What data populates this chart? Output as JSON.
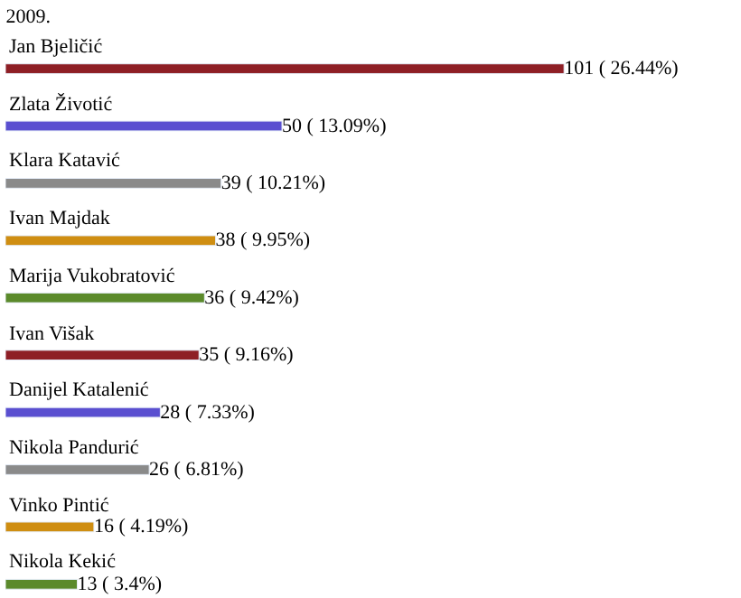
{
  "chart_data": {
    "type": "bar",
    "orientation": "horizontal",
    "title": "2009.",
    "categories": [
      "Jan Bjeličić",
      "Zlata Životić",
      "Klara Katavić",
      "Ivan Majdak",
      "Marija Vukobratović",
      "Ivan Višak",
      "Danijel Katalenić",
      "Nikola Pandurić",
      "Vinko Pintić",
      "Nikola Kekić"
    ],
    "values": [
      101,
      50,
      39,
      38,
      36,
      35,
      28,
      26,
      16,
      13
    ],
    "value_labels": [
      "101 ( 26.44%)",
      "50 ( 13.09%)",
      "39 ( 10.21%)",
      "38 ( 9.95%)",
      "36 ( 9.42%)",
      "35 ( 9.16%)",
      "28 ( 7.33%)",
      "26 ( 6.81%)",
      "16 ( 4.19%)",
      "13 ( 3.4%)"
    ],
    "colors": [
      "#8e1f25",
      "#5a4fd0",
      "#8a8a8a",
      "#cf8e12",
      "#5b8a2b",
      "#8e1f25",
      "#5a4fd0",
      "#8a8a8a",
      "#cf8e12",
      "#5b8a2b"
    ],
    "xlim": [
      0,
      133
    ],
    "tick_labels": false
  }
}
